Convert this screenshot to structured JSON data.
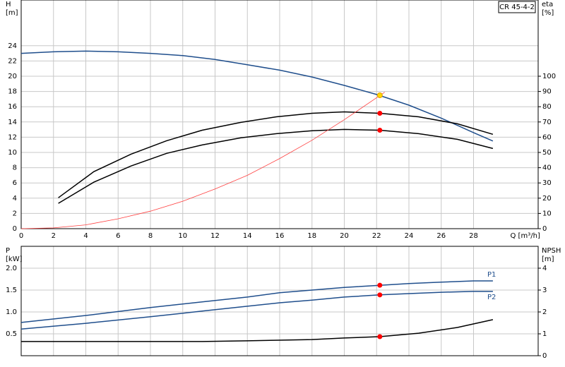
{
  "chart_data": [
    {
      "type": "line",
      "title": "CR 45-4-2",
      "ylabel": "H",
      "yunit": "[m]",
      "y2label": "eta",
      "y2unit": "[%]",
      "xlabel": "Q [m³/h]",
      "xlim": [
        0,
        32
      ],
      "xticks": [
        0,
        2,
        4,
        6,
        8,
        10,
        12,
        14,
        16,
        18,
        20,
        22,
        24,
        26,
        28
      ],
      "xtick_labels": true,
      "ylim": [
        0,
        30
      ],
      "yticks": [
        0,
        2,
        4,
        6,
        8,
        10,
        12,
        14,
        16,
        18,
        20,
        22,
        24
      ],
      "y2lim": [
        0,
        150
      ],
      "y2ticks": [
        0,
        10,
        20,
        30,
        40,
        50,
        60,
        70,
        80,
        90,
        100
      ],
      "grid": true,
      "series": [
        {
          "color": "#1f4e8c",
          "x": [
            0,
            2,
            4,
            6,
            8,
            10,
            12,
            14,
            16,
            18,
            20,
            22,
            24,
            26,
            28,
            29.2
          ],
          "values": [
            23.0,
            23.2,
            23.3,
            23.2,
            23.0,
            22.7,
            22.2,
            21.5,
            20.8,
            19.9,
            18.8,
            17.6,
            16.2,
            14.5,
            12.6,
            11.5
          ]
        },
        {
          "color": "#000000",
          "axis": "y2",
          "x": [
            2.3,
            4.5,
            6.8,
            9,
            11.2,
            13.6,
            15.8,
            18,
            20,
            22.2,
            24.6,
            27,
            29.2
          ],
          "values": [
            20.3,
            37.4,
            48.9,
            57.7,
            64.6,
            69.7,
            73.4,
            75.7,
            76.6,
            75.7,
            73.4,
            68.8,
            61.9
          ]
        },
        {
          "color": "#000000",
          "axis": "y2",
          "x": [
            2.3,
            4.5,
            6.8,
            9,
            11.2,
            13.6,
            15.8,
            18,
            20,
            22.2,
            24.6,
            27,
            29.2
          ],
          "values": [
            16.6,
            30.5,
            41.1,
            49.4,
            54.9,
            59.6,
            62.3,
            64.2,
            65.1,
            64.6,
            62.3,
            58.6,
            52.6
          ]
        },
        {
          "color": "#ff4040",
          "x": [
            0,
            2,
            4,
            6,
            8,
            10,
            12,
            14,
            16,
            18,
            20,
            22.5
          ],
          "values": [
            0,
            0.1,
            0.5,
            1.3,
            2.3,
            3.6,
            5.2,
            7.0,
            9.2,
            11.6,
            14.3,
            17.9
          ]
        },
        {
          "color": "#ffd700",
          "marker": true,
          "x": [
            22.2
          ],
          "values": [
            17.5
          ]
        },
        {
          "color": "#ff0000",
          "marker": true,
          "axis": "y2",
          "x": [
            22.2,
            22.2
          ],
          "values": [
            75.7,
            64.6
          ]
        }
      ]
    },
    {
      "type": "line",
      "ylabel": "P",
      "yunit": "[kW]",
      "y2label": "NPSH",
      "y2unit": "[m]",
      "xlim": [
        0,
        32
      ],
      "xticks": [
        0,
        2,
        4,
        6,
        8,
        10,
        12,
        14,
        16,
        18,
        20,
        22,
        24,
        26,
        28
      ],
      "xtick_labels": false,
      "ylim": [
        0,
        2.5
      ],
      "yticks": [
        {
          "value": 0.5,
          "label": "0.5"
        },
        {
          "value": 1,
          "label": "1.0"
        },
        {
          "value": 1.5,
          "label": "1.5"
        },
        {
          "value": 2,
          "label": "2.0"
        }
      ],
      "y2lim": [
        0,
        5
      ],
      "y2ticks": [
        0,
        1,
        2,
        3,
        4
      ],
      "grid": true,
      "series": [
        {
          "name": "P1",
          "color": "#1f4e8c",
          "x": [
            0,
            4,
            8,
            11.2,
            14,
            16,
            18,
            20,
            22.2,
            24,
            26,
            28,
            29.2
          ],
          "values": [
            0.76,
            0.92,
            1.1,
            1.23,
            1.34,
            1.44,
            1.5,
            1.56,
            1.61,
            1.65,
            1.68,
            1.71,
            1.71
          ]
        },
        {
          "name": "P2",
          "color": "#1f4e8c",
          "x": [
            0,
            4,
            8,
            11.2,
            14,
            16,
            18,
            20,
            22.2,
            24,
            26,
            28,
            29.2
          ],
          "values": [
            0.61,
            0.74,
            0.89,
            1.02,
            1.13,
            1.21,
            1.27,
            1.34,
            1.39,
            1.42,
            1.45,
            1.47,
            1.47
          ]
        },
        {
          "color": "#000000",
          "axis": "y2",
          "x": [
            0,
            8,
            11.2,
            14,
            16,
            18,
            20,
            22.2,
            24.6,
            27,
            29.2
          ],
          "values": [
            0.65,
            0.65,
            0.65,
            0.68,
            0.71,
            0.74,
            0.81,
            0.87,
            1.03,
            1.29,
            1.65
          ]
        },
        {
          "color": "#ff0000",
          "marker": true,
          "x": [
            22.2,
            22.2
          ],
          "values": [
            1.61,
            1.39
          ]
        },
        {
          "color": "#ff0000",
          "marker": true,
          "axis": "y2",
          "x": [
            22.2
          ],
          "values": [
            0.87
          ]
        }
      ]
    }
  ]
}
